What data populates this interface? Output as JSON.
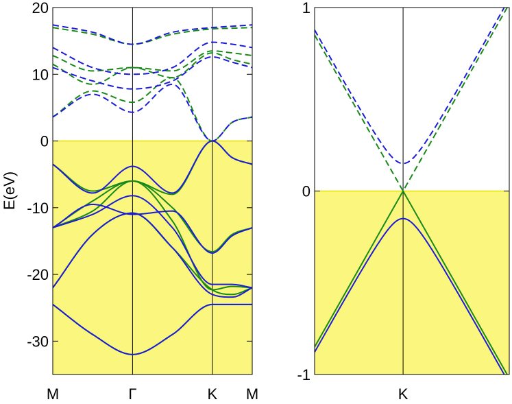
{
  "chart_data": [
    {
      "type": "line",
      "panel": "left",
      "title": "",
      "xlabel": "",
      "ylabel": "E(eV)",
      "ylim": [
        -35,
        20
      ],
      "yticks": [
        20,
        10,
        0,
        -10,
        -20,
        -30
      ],
      "ytick_labels": [
        "20",
        "10",
        "0",
        "-10",
        "-20",
        "-30"
      ],
      "kpoints": [
        {
          "label": "M",
          "x": 0
        },
        {
          "label": "Γ",
          "x": 1
        },
        {
          "label": "K",
          "x": 2.0
        },
        {
          "label": "M",
          "x": 2.5
        }
      ],
      "shaded_occupied_region": {
        "from": -35,
        "to": 0,
        "color": "#fbf67e"
      },
      "fermi_level": 0,
      "series_colors": {
        "blue": "#1c1cd6",
        "green": "#198a19",
        "fermi": "#e8e000"
      },
      "series": [
        {
          "name": "green-occ-1",
          "color": "green",
          "style": "solid",
          "x": [
            0,
            0.5,
            1,
            1.5,
            2,
            2.25,
            2.5
          ],
          "y": [
            -24.5,
            -29,
            -32,
            -29,
            -24.5,
            -24.5,
            -24.5
          ]
        },
        {
          "name": "blue-occ-1",
          "color": "blue",
          "style": "solid",
          "x": [
            0,
            0.5,
            1,
            1.5,
            2,
            2.25,
            2.5
          ],
          "y": [
            -24.5,
            -29,
            -32,
            -29,
            -24.5,
            -24.5,
            -24.5
          ]
        },
        {
          "name": "green-occ-2",
          "color": "green",
          "style": "solid",
          "x": [
            0,
            0.5,
            1,
            1.5,
            2,
            2.25,
            2.5
          ],
          "y": [
            -22,
            -14,
            -10.8,
            -16,
            -22.3,
            -23,
            -22
          ]
        },
        {
          "name": "blue-occ-2",
          "color": "blue",
          "style": "solid",
          "x": [
            0,
            0.5,
            1,
            1.5,
            2,
            2.25,
            2.5
          ],
          "y": [
            -22,
            -14,
            -10.8,
            -16,
            -23,
            -23.4,
            -22
          ]
        },
        {
          "name": "green-occ-3",
          "color": "green",
          "style": "solid",
          "x": [
            0,
            0.5,
            1,
            1.5,
            2,
            2.25,
            2.5
          ],
          "y": [
            -13,
            -10.5,
            -6,
            -12,
            -22.3,
            -21.8,
            -22
          ]
        },
        {
          "name": "blue-occ-3",
          "color": "blue",
          "style": "solid",
          "x": [
            0,
            0.5,
            1,
            1.5,
            2,
            2.25,
            2.5
          ],
          "y": [
            -13,
            -11,
            -8.2,
            -13,
            -21.5,
            -21.5,
            -22
          ]
        },
        {
          "name": "green-occ-4",
          "color": "green",
          "style": "solid",
          "x": [
            0,
            0.5,
            1,
            1.5,
            2,
            2.25,
            2.5
          ],
          "y": [
            -13,
            -9,
            -6,
            -10,
            -16.6,
            -14,
            -13
          ]
        },
        {
          "name": "blue-occ-4",
          "color": "blue",
          "style": "solid",
          "x": [
            0,
            0.5,
            1,
            1.5,
            2,
            2.25,
            2.5
          ],
          "y": [
            -13,
            -9.5,
            -11,
            -10.5,
            -16.8,
            -14.2,
            -13
          ]
        },
        {
          "name": "green-occ-5",
          "color": "green",
          "style": "solid",
          "x": [
            0,
            0.5,
            1,
            1.5,
            2,
            2.25,
            2.5
          ],
          "y": [
            -3.5,
            -7.5,
            -6,
            -8,
            0,
            -2.5,
            -3.5
          ]
        },
        {
          "name": "blue-occ-5",
          "color": "blue",
          "style": "solid",
          "x": [
            0,
            0.5,
            1,
            1.5,
            2,
            2.25,
            2.5
          ],
          "y": [
            -3.5,
            -7.8,
            -3.8,
            -7.8,
            0,
            -2.5,
            -3.5
          ]
        },
        {
          "name": "green-unocc-1",
          "color": "green",
          "style": "dashed",
          "x": [
            0,
            0.5,
            1,
            1.5,
            2,
            2.25,
            2.5
          ],
          "y": [
            3.6,
            7.5,
            5.8,
            9.5,
            0,
            2.8,
            3.6
          ]
        },
        {
          "name": "blue-unocc-1",
          "color": "blue",
          "style": "dashed",
          "x": [
            0,
            0.5,
            1,
            1.5,
            2,
            2.25,
            2.5
          ],
          "y": [
            3.6,
            7,
            4.3,
            8.5,
            0,
            2.8,
            3.6
          ]
        },
        {
          "name": "green-unocc-2",
          "color": "green",
          "style": "dashed",
          "x": [
            0,
            0.5,
            1,
            1.5,
            2,
            2.25,
            2.5
          ],
          "y": [
            11.5,
            8.5,
            11,
            9.5,
            13.2,
            12.2,
            11.5
          ]
        },
        {
          "name": "blue-unocc-2",
          "color": "blue",
          "style": "dashed",
          "x": [
            0,
            0.5,
            1,
            1.5,
            2,
            2.25,
            2.5
          ],
          "y": [
            11,
            9,
            7.8,
            9,
            12.6,
            11.8,
            11
          ]
        },
        {
          "name": "green-unocc-3",
          "color": "green",
          "style": "dashed",
          "x": [
            0,
            0.5,
            1,
            1.5,
            2,
            2.25,
            2.5
          ],
          "y": [
            12.8,
            10.5,
            11,
            10.5,
            13.5,
            13.2,
            12.8
          ]
        },
        {
          "name": "blue-unocc-3",
          "color": "blue",
          "style": "dashed",
          "x": [
            0,
            0.5,
            1,
            1.5,
            2,
            2.25,
            2.5
          ],
          "y": [
            14,
            11,
            10,
            11,
            14.8,
            14.5,
            14
          ]
        },
        {
          "name": "green-unocc-4",
          "color": "green",
          "style": "dashed",
          "x": [
            0,
            0.5,
            1,
            1.5,
            2,
            2.25,
            2.5
          ],
          "y": [
            17,
            16,
            14.5,
            16,
            16.8,
            16.9,
            17
          ]
        },
        {
          "name": "blue-unocc-4",
          "color": "blue",
          "style": "dashed",
          "x": [
            0,
            0.5,
            1,
            1.5,
            2,
            2.25,
            2.5
          ],
          "y": [
            17.4,
            16.3,
            14.5,
            16.3,
            17,
            17.2,
            17.4
          ]
        }
      ]
    },
    {
      "type": "line",
      "panel": "right",
      "title": "",
      "xlabel": "",
      "ylabel": "",
      "xlim": [
        -0.5,
        0.6
      ],
      "ylim": [
        -1,
        1
      ],
      "yticks": [
        1,
        0,
        -1
      ],
      "ytick_labels": [
        "1",
        "0",
        "-1"
      ],
      "kpoints": [
        {
          "label": "K",
          "x": 0
        }
      ],
      "shaded_occupied_region": {
        "from": -1,
        "to": 0,
        "color": "#fbf67e"
      },
      "fermi_level": 0,
      "series_colors": {
        "blue": "#1c1cd6",
        "green": "#198a19",
        "fermi": "#e8e000"
      },
      "series": [
        {
          "name": "green-dirac-valence",
          "color": "green",
          "style": "solid",
          "kind": "cone",
          "gap": 0,
          "slope": 1.7,
          "sign": -1
        },
        {
          "name": "green-dirac-conduction",
          "color": "green",
          "style": "dashed",
          "kind": "cone",
          "gap": 0,
          "slope": 1.7,
          "sign": 1
        },
        {
          "name": "blue-gapped-valence",
          "color": "blue",
          "style": "solid",
          "kind": "cone",
          "gap": 0.15,
          "slope": 1.73,
          "sign": -1
        },
        {
          "name": "blue-gapped-conduction",
          "color": "blue",
          "style": "dashed",
          "kind": "cone",
          "gap": 0.15,
          "slope": 1.73,
          "sign": 1
        }
      ]
    }
  ]
}
